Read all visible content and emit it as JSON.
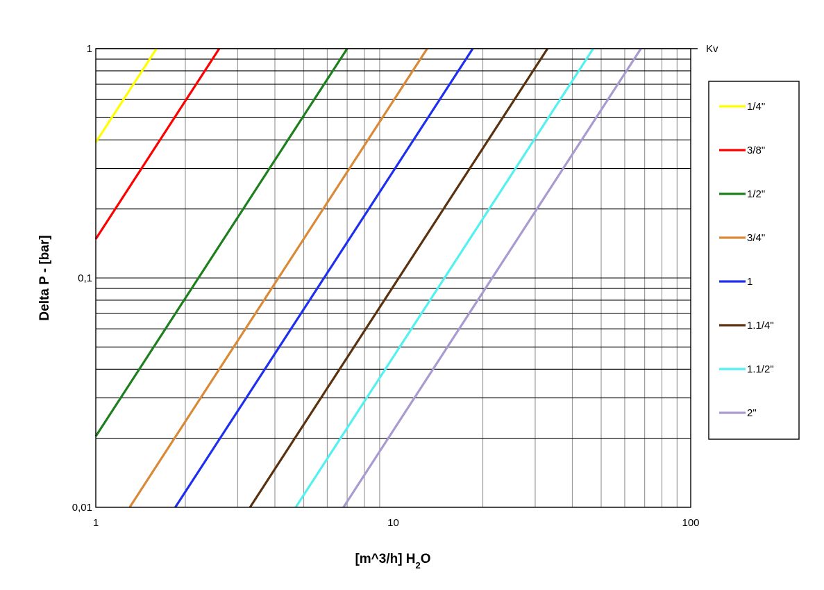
{
  "chart_data": {
    "type": "line",
    "x_scale": "log",
    "y_scale": "log",
    "xlim": [
      1,
      100
    ],
    "ylim": [
      0.01,
      1
    ],
    "xlabel": {
      "prefix": "[m^3/h] H",
      "sub": "2",
      "suffix": "O"
    },
    "ylabel": "Delta P - [bar]",
    "corner_label": "Kv",
    "x_ticks": [
      {
        "value": 1,
        "label": "1"
      },
      {
        "value": 10,
        "label": "10"
      },
      {
        "value": 100,
        "label": "100"
      }
    ],
    "y_ticks": [
      {
        "value": 1,
        "label": "1"
      },
      {
        "value": 0.1,
        "label": "0,1"
      },
      {
        "value": 0.01,
        "label": "0,01"
      }
    ],
    "grid": true,
    "legend_position": "right",
    "series": [
      {
        "name": "1/4\"",
        "color": "#ffff00",
        "kv": 1.6
      },
      {
        "name": "3/8\"",
        "color": "#ff0000",
        "kv": 2.6
      },
      {
        "name": "1/2\"",
        "color": "#1e7f1e",
        "kv": 7.0
      },
      {
        "name": "3/4\"",
        "color": "#d98a38",
        "kv": 13.0
      },
      {
        "name": "1",
        "color": "#1f2ff0",
        "kv": 18.5
      },
      {
        "name": "1.1/4\"",
        "color": "#5a3210",
        "kv": 33.0
      },
      {
        "name": "1.1/2\"",
        "color": "#55f0f0",
        "kv": 47.0
      },
      {
        "name": "2\"",
        "color": "#a99ad0",
        "kv": 68.0
      }
    ]
  }
}
